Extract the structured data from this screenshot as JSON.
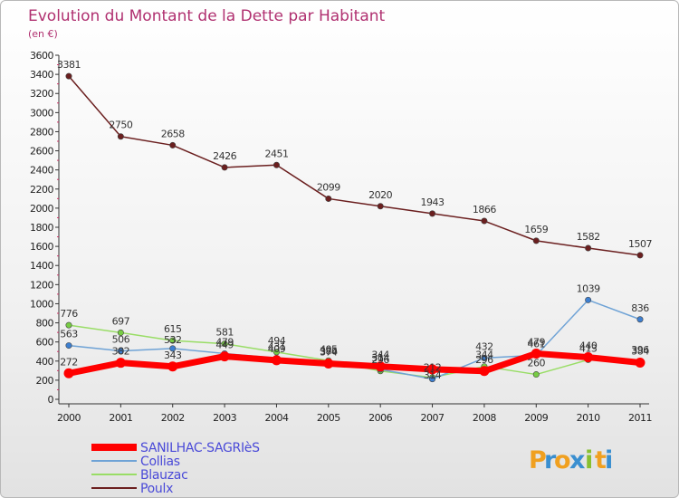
{
  "chart_data": {
    "type": "line",
    "title": "Evolution du Montant de la Dette par Habitant",
    "subtitle": "(en €)",
    "xlabel": "",
    "ylabel": "",
    "categories": [
      "2000",
      "2001",
      "2002",
      "2003",
      "2004",
      "2005",
      "2006",
      "2007",
      "2008",
      "2009",
      "2010",
      "2011"
    ],
    "ylim": [
      0,
      3600
    ],
    "yticks": [
      "0",
      "200",
      "400",
      "600",
      "800",
      "1000",
      "1200",
      "1400",
      "1600",
      "1800",
      "2000",
      "2200",
      "2400",
      "2600",
      "2800",
      "3000",
      "3200",
      "3400",
      "3600"
    ],
    "grid": false,
    "legend_position": "bottom-left",
    "series": [
      {
        "name": "SANILHAC-SAGRIèS",
        "color": "#ff0000",
        "marker": "#ff0000",
        "values": [
          272,
          382,
          343,
          449,
          409,
          374,
          344,
          314,
          296,
          479,
          440,
          384
        ]
      },
      {
        "name": "Collias",
        "color": "#6fa3d6",
        "marker": "#3d7fd0",
        "values": [
          563,
          506,
          532,
          479,
          431,
          386,
          314,
          212,
          432,
          461,
          1039,
          836
        ]
      },
      {
        "name": "Blauzac",
        "color": "#99dd66",
        "marker": "#77cc44",
        "values": [
          776,
          697,
          615,
          581,
          494,
          405,
          296,
          228,
          344,
          260,
          413,
          396
        ]
      },
      {
        "name": "Poulx",
        "color": "#6b1f1f",
        "marker": "#6b1f1f",
        "values": [
          3381,
          2750,
          2658,
          2426,
          2451,
          2099,
          2020,
          1943,
          1866,
          1659,
          1582,
          1507
        ]
      }
    ],
    "data_labels": {
      "SANILHAC-SAGRIèS": [
        "272",
        "382",
        "343",
        "449",
        "409",
        "374",
        "344",
        "",
        "296",
        "479",
        "440",
        "384"
      ],
      "Collias": [
        "563",
        "506",
        "",
        "479",
        "431",
        "386",
        "314",
        "212",
        "432",
        "461",
        "1039",
        "836"
      ],
      "Blauzac": [
        "776",
        "697",
        "615",
        "581",
        "494",
        "405",
        "296",
        "",
        "344",
        "260",
        "413",
        "396"
      ],
      "Poulx": [
        "3381",
        "2750",
        "2658",
        "2426",
        "2451",
        "2099",
        "2020",
        "1943",
        "1866",
        "1659",
        "1582",
        "1507"
      ]
    },
    "extra_labels": [
      "532",
      "314"
    ]
  },
  "brand": {
    "logo_text": "Proxiti",
    "letters": [
      "P",
      "r",
      "o",
      "x",
      "i",
      "t",
      "i"
    ],
    "colors": [
      "#f0a020",
      "#3a8fd0",
      "#f0a020",
      "#3a8fd0",
      "#88c030",
      "#f0a020",
      "#3a8fd0"
    ]
  }
}
